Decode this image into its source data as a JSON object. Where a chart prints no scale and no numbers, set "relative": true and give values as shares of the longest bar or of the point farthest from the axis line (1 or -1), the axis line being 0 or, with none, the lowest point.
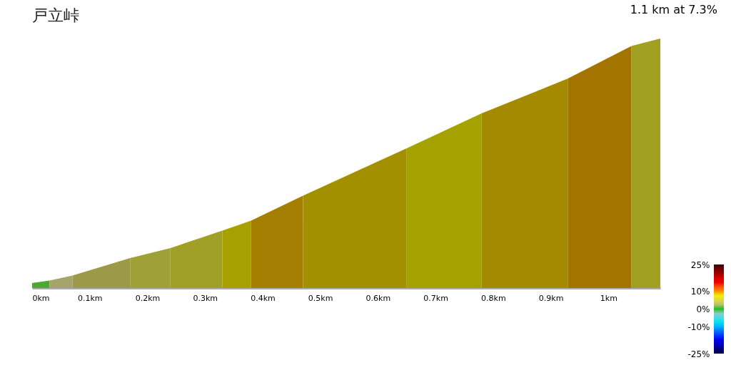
{
  "chart_data": {
    "type": "area",
    "title": "戸立峠",
    "annotations": [
      "1.1 km at 7.3%"
    ],
    "relative": true,
    "grid": false,
    "xlim": [
      0,
      1.09
    ],
    "xticks": [
      {
        "value": 0,
        "label": "0km"
      },
      {
        "value": 0.1,
        "label": "0.1km"
      },
      {
        "value": 0.2,
        "label": "0.2km"
      },
      {
        "value": 0.3,
        "label": "0.3km"
      },
      {
        "value": 0.4,
        "label": "0.4km"
      },
      {
        "value": 0.5,
        "label": "0.5km"
      },
      {
        "value": 0.6,
        "label": "0.6km"
      },
      {
        "value": 0.7,
        "label": "0.7km"
      },
      {
        "value": 0.8,
        "label": "0.8km"
      },
      {
        "value": 0.9,
        "label": "0.9km"
      },
      {
        "value": 1,
        "label": "1km"
      }
    ],
    "clim": [
      -25,
      25
    ],
    "cticks": [
      {
        "value": 25,
        "label": "25%"
      },
      {
        "value": 10,
        "label": "10%"
      },
      {
        "value": 0,
        "label": "0%"
      },
      {
        "value": -10,
        "label": "-10%"
      },
      {
        "value": -25,
        "label": "-25%"
      }
    ],
    "series": [
      {
        "x": [
          0,
          0.03
        ],
        "values": [
          0.02,
          0.03
        ],
        "color": "#4ca832"
      },
      {
        "x": [
          0.03,
          0.07
        ],
        "values": [
          0.03,
          0.05
        ],
        "color": "#a6a46a"
      },
      {
        "x": [
          0.07,
          0.17
        ],
        "values": [
          0.05,
          0.12
        ],
        "color": "#9c9a48"
      },
      {
        "x": [
          0.17,
          0.24
        ],
        "values": [
          0.12,
          0.16
        ],
        "color": "#a0a038"
      },
      {
        "x": [
          0.24,
          0.33
        ],
        "values": [
          0.16,
          0.23
        ],
        "color": "#a0a028"
      },
      {
        "x": [
          0.33,
          0.38
        ],
        "values": [
          0.23,
          0.27
        ],
        "color": "#a8a000"
      },
      {
        "x": [
          0.38,
          0.47
        ],
        "values": [
          0.27,
          0.37
        ],
        "color": "#a47e00"
      },
      {
        "x": [
          0.47,
          0.65
        ],
        "values": [
          0.37,
          0.56
        ],
        "color": "#a39000"
      },
      {
        "x": [
          0.65,
          0.78
        ],
        "values": [
          0.56,
          0.7
        ],
        "color": "#a4a200"
      },
      {
        "x": [
          0.78,
          0.93
        ],
        "values": [
          0.7,
          0.84
        ],
        "color": "#a38a00"
      },
      {
        "x": [
          0.93,
          1.04
        ],
        "values": [
          0.84,
          0.97
        ],
        "color": "#a37400"
      },
      {
        "x": [
          1.04,
          1.09
        ],
        "values": [
          0.97,
          1
        ],
        "color": "#a2a020"
      }
    ]
  }
}
